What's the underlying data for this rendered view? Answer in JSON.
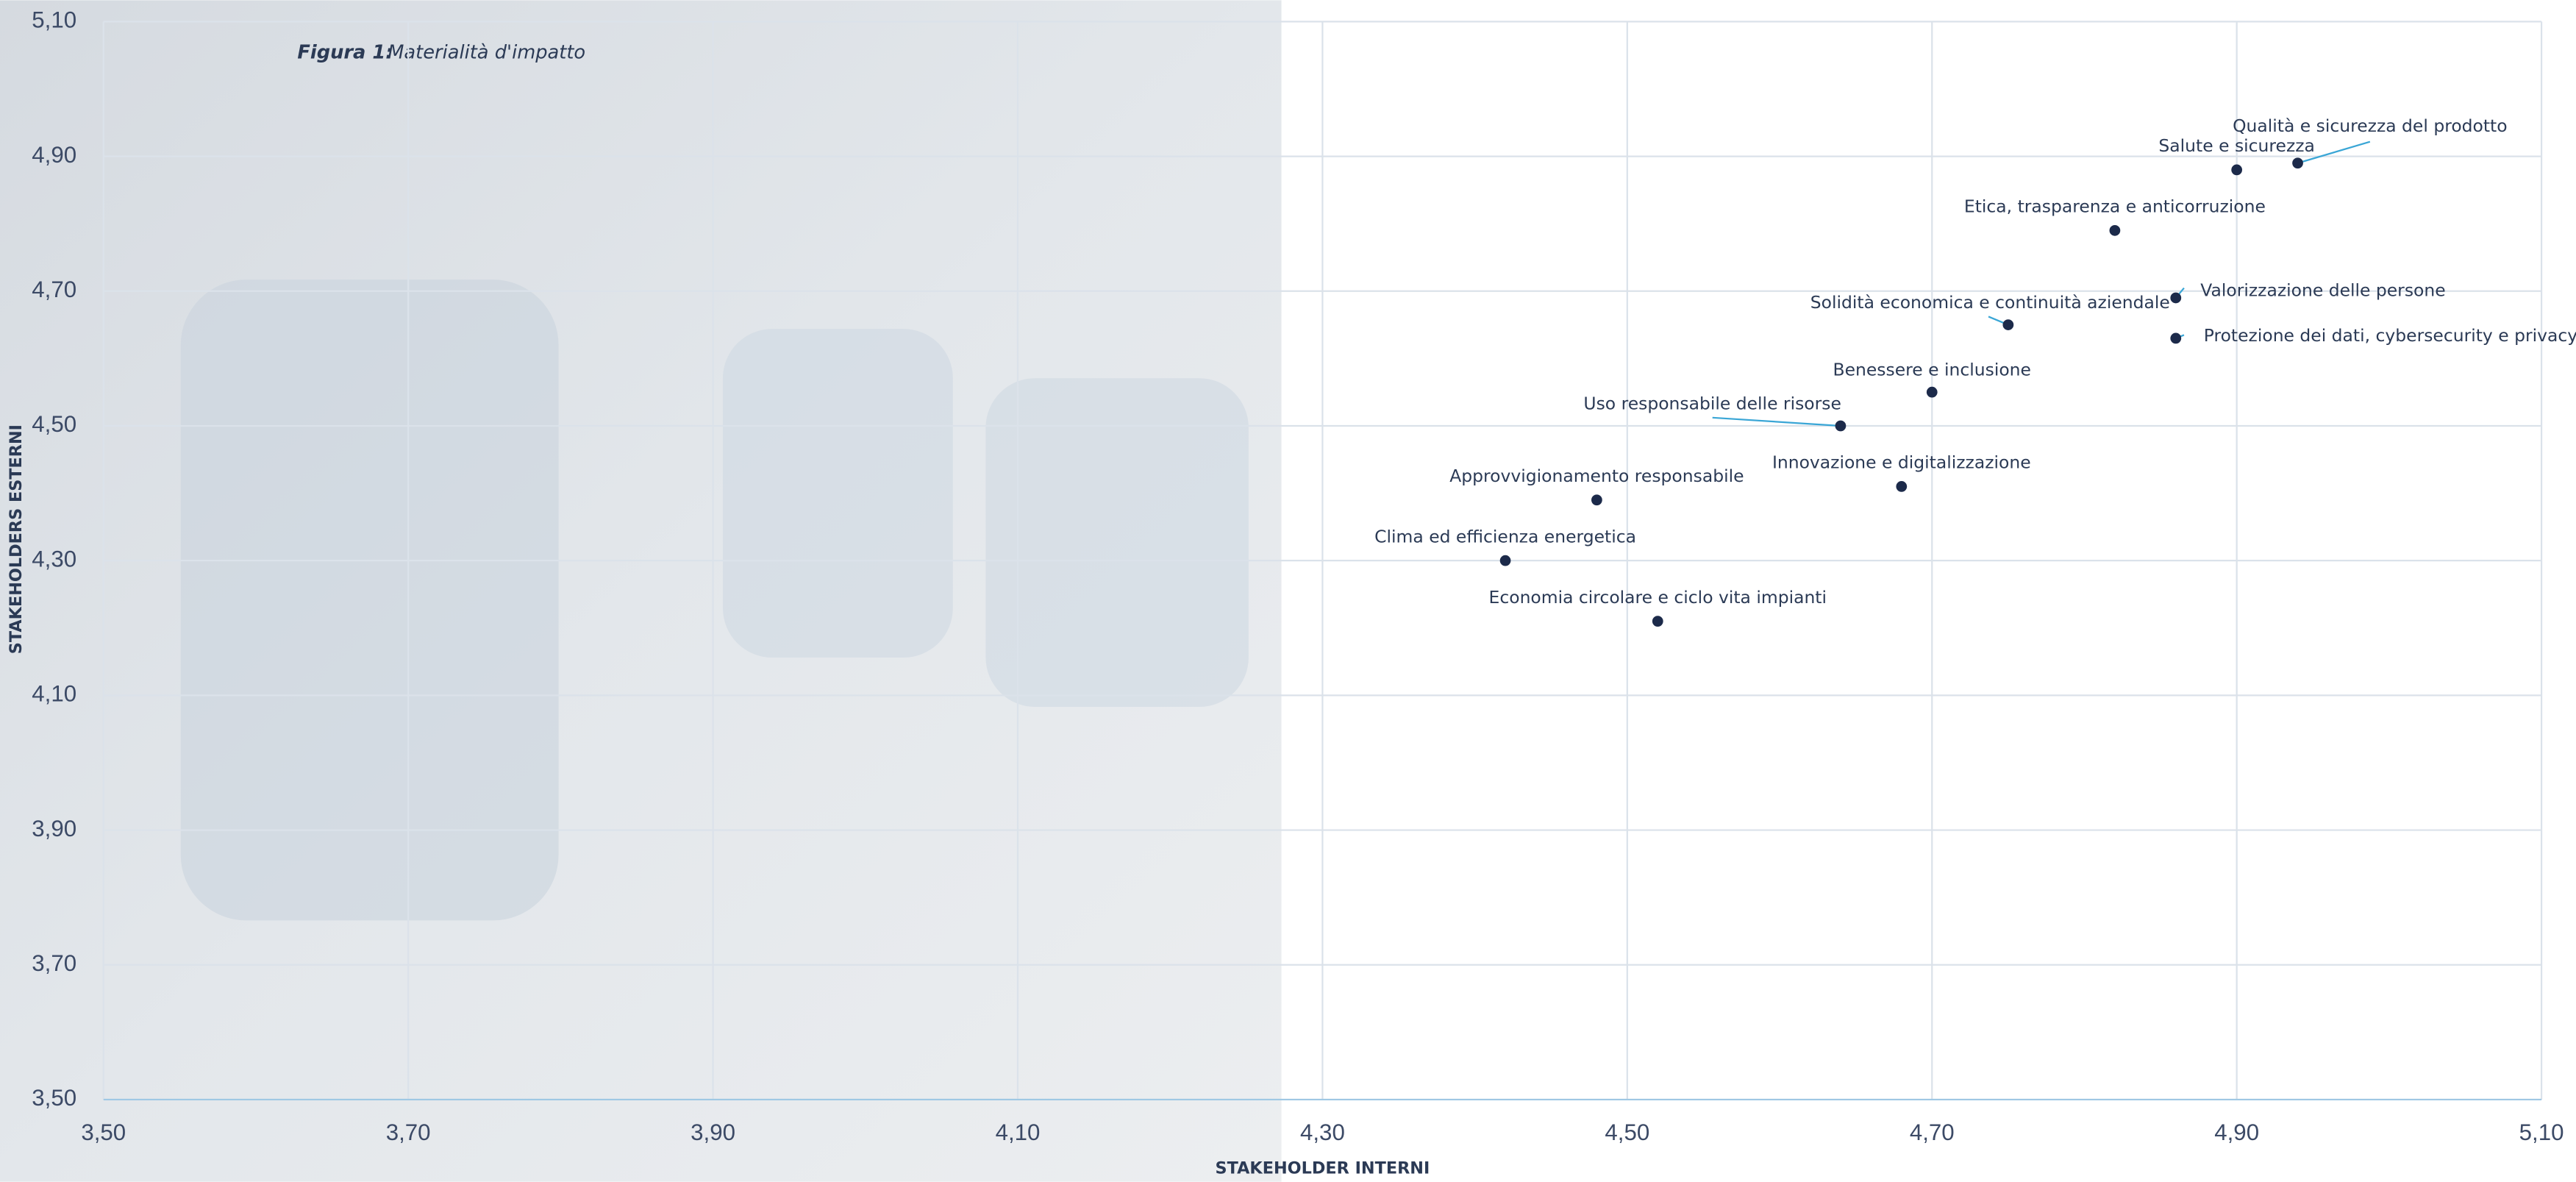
{
  "chart_data": {
    "type": "scatter",
    "figure_label": "Figura 1:",
    "title": "Materialità d'impatto",
    "x_label": "STAKEHOLDER INTERNI",
    "y_label": "STAKEHOLDERS ESTERNI",
    "labels": [
      "Qualità e sicurezza del prodotto",
      "Salute e sicurezza",
      "Etica, trasparenza e anticorruzione",
      "Valorizzazione delle persone",
      "Protezione dei dati, cybersecurity e privacy",
      "Solidità economica e continuità aziendale",
      "Benessere e inclusione",
      "Uso responsabile delle risorse",
      "Innovazione e digitalizzazione",
      "Approvvigionamento responsabile",
      "Clima ed efficienza energetica",
      "Economia circolare e ciclo vita impianti"
    ],
    "x": [
      4.94,
      4.9,
      4.82,
      4.86,
      4.86,
      4.75,
      4.7,
      4.64,
      4.68,
      4.48,
      4.42,
      4.52
    ],
    "values": [
      4.89,
      4.88,
      4.79,
      4.69,
      4.63,
      4.65,
      4.55,
      4.5,
      4.41,
      4.39,
      4.3,
      4.21
    ],
    "color": "#1c2a4a",
    "leader_color": "#3aa6d6",
    "xlim": [
      3.5,
      5.1
    ],
    "ylim": [
      3.5,
      5.1
    ],
    "grid": true,
    "xticks": [
      {
        "value": 3.5,
        "label": "3,50"
      },
      {
        "value": 3.7,
        "label": "3,70"
      },
      {
        "value": 3.9,
        "label": "3,90"
      },
      {
        "value": 4.1,
        "label": "4,10"
      },
      {
        "value": 4.3,
        "label": "4,30"
      },
      {
        "value": 4.5,
        "label": "4,50"
      },
      {
        "value": 4.7,
        "label": "4,70"
      },
      {
        "value": 4.9,
        "label": "4,90"
      },
      {
        "value": 5.1,
        "label": "5,10"
      }
    ],
    "yticks": [
      {
        "value": 3.5,
        "label": "3,50"
      },
      {
        "value": 3.7,
        "label": "3,70"
      },
      {
        "value": 3.9,
        "label": "3,90"
      },
      {
        "value": 4.1,
        "label": "4,10"
      },
      {
        "value": 4.3,
        "label": "4,30"
      },
      {
        "value": 4.5,
        "label": "4,50"
      },
      {
        "value": 4.7,
        "label": "4,70"
      },
      {
        "value": 4.9,
        "label": "4,90"
      },
      {
        "value": 5.1,
        "label": "5,10"
      }
    ]
  }
}
